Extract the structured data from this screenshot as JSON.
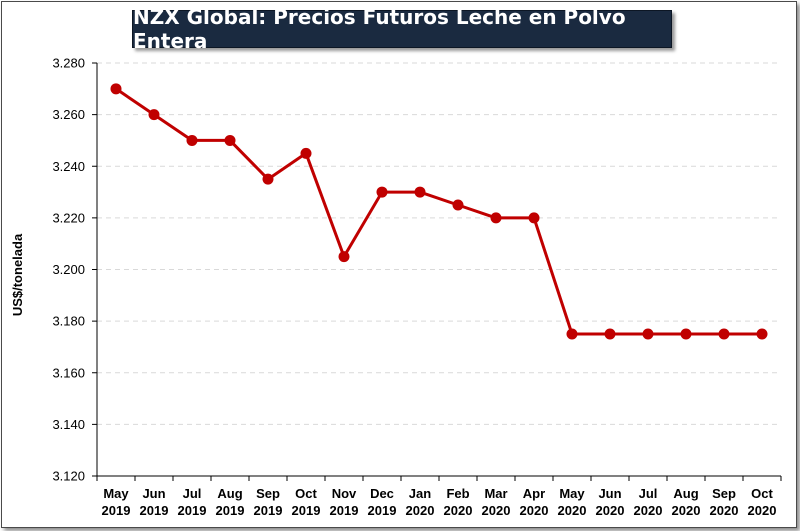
{
  "chart_data": {
    "type": "line",
    "title": "NZX Global: Precios Futuros Leche en Polvo Entera",
    "xlabel": "",
    "ylabel": "US$/tonelada",
    "ylim": [
      3120,
      3280
    ],
    "yticks": [
      3120,
      3140,
      3160,
      3180,
      3200,
      3220,
      3240,
      3260,
      3280
    ],
    "ytick_labels": [
      "3.120",
      "3.140",
      "3.160",
      "3.180",
      "3.200",
      "3.220",
      "3.240",
      "3.260",
      "3.280"
    ],
    "categories": [
      [
        "May",
        "2019"
      ],
      [
        "Jun",
        "2019"
      ],
      [
        "Jul",
        "2019"
      ],
      [
        "Aug",
        "2019"
      ],
      [
        "Sep",
        "2019"
      ],
      [
        "Oct",
        "2019"
      ],
      [
        "Nov",
        "2019"
      ],
      [
        "Dec",
        "2019"
      ],
      [
        "Jan",
        "2020"
      ],
      [
        "Feb",
        "2020"
      ],
      [
        "Mar",
        "2020"
      ],
      [
        "Apr",
        "2020"
      ],
      [
        "May",
        "2020"
      ],
      [
        "Jun",
        "2020"
      ],
      [
        "Jul",
        "2020"
      ],
      [
        "Aug",
        "2020"
      ],
      [
        "Sep",
        "2020"
      ],
      [
        "Oct",
        "2020"
      ]
    ],
    "series": [
      {
        "values": [
          3270,
          3260,
          3250,
          3250,
          3235,
          3245,
          3205,
          3230,
          3230,
          3225,
          3220,
          3220,
          3175,
          3175,
          3175,
          3175,
          3175,
          3175
        ]
      }
    ],
    "grid": true,
    "legend": "none",
    "colors": {
      "line": "#c00000",
      "grid": "#d9d9d9",
      "title_bg": "#1a2a40"
    }
  }
}
